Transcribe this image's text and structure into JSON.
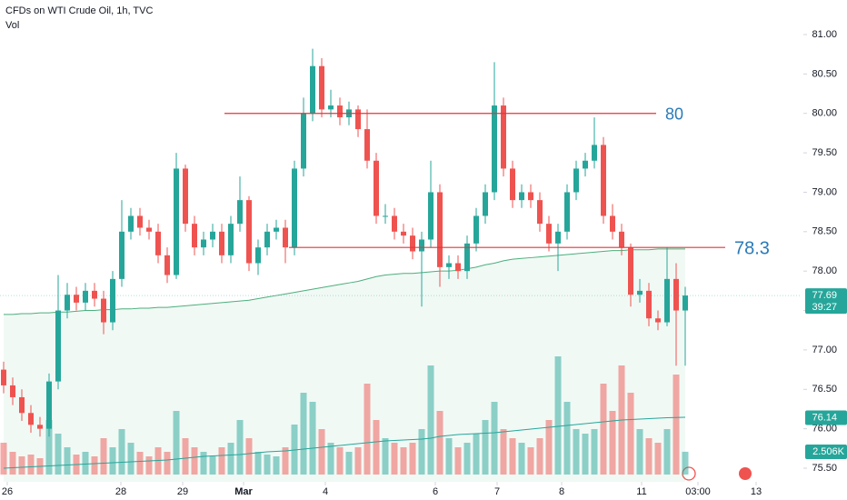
{
  "chart_data": {
    "type": "candlestick",
    "title": "CFDs on WTI Crude Oil, 1h, TVC",
    "volume_title": "Vol",
    "x": [
      0,
      1,
      2,
      3,
      4,
      5,
      6,
      7,
      8,
      9,
      10,
      11,
      12,
      13,
      14,
      15,
      16,
      17,
      18,
      19,
      20,
      21,
      22,
      23,
      24,
      25,
      26,
      27,
      28,
      29,
      30,
      31,
      32,
      33,
      34,
      35,
      36,
      37,
      38,
      39,
      40,
      41,
      42,
      43,
      44,
      45,
      46,
      47,
      48,
      49,
      50,
      51,
      52,
      53,
      54,
      55,
      56,
      57,
      58,
      59,
      60,
      61,
      62,
      63,
      64,
      65,
      66,
      67,
      68,
      69,
      70,
      71,
      72,
      73,
      74,
      75
    ],
    "xlim": [
      -0.4,
      87.6
    ],
    "xticks": [
      {
        "value": 0.4,
        "label": "26"
      },
      {
        "value": 12.9,
        "label": "28"
      },
      {
        "value": 19.7,
        "label": "29"
      },
      {
        "value": 26.4,
        "label": "Mar"
      },
      {
        "value": 35.4,
        "label": "4"
      },
      {
        "value": 47.5,
        "label": "6"
      },
      {
        "value": 54.3,
        "label": "7"
      },
      {
        "value": 61.4,
        "label": "8"
      },
      {
        "value": 70.2,
        "label": "11"
      },
      {
        "value": 76.4,
        "label": "03:00"
      },
      {
        "value": 82.8,
        "label": "13"
      }
    ],
    "ylim": [
      75.5,
      81
    ],
    "yticks": [
      {
        "value": 75.5,
        "label": "75.50"
      },
      {
        "value": 76,
        "label": "76.00"
      },
      {
        "value": 76.5,
        "label": "76.50"
      },
      {
        "value": 77,
        "label": "77.00"
      },
      {
        "value": 77.5,
        "label": "77.50"
      },
      {
        "value": 78,
        "label": "78.00"
      },
      {
        "value": 78.5,
        "label": "78.50"
      },
      {
        "value": 79,
        "label": "79.00"
      },
      {
        "value": 79.5,
        "label": "79.50"
      },
      {
        "value": 80,
        "label": "80.00"
      },
      {
        "value": 80.5,
        "label": "80.50"
      },
      {
        "value": 81,
        "label": "81.00"
      }
    ],
    "open": [
      76.75,
      76.55,
      76.4,
      76.2,
      76.05,
      76.0,
      76.6,
      77.5,
      77.7,
      77.6,
      77.75,
      77.65,
      77.35,
      77.9,
      78.5,
      78.7,
      78.55,
      78.5,
      78.2,
      77.95,
      79.3,
      78.6,
      78.3,
      78.4,
      78.5,
      78.2,
      78.6,
      78.9,
      78.1,
      78.3,
      78.5,
      78.55,
      78.3,
      79.3,
      80.0,
      80.6,
      80.05,
      80.1,
      79.95,
      80.05,
      79.8,
      79.4,
      78.7,
      78.7,
      78.5,
      78.45,
      78.25,
      78.4,
      79.0,
      78.05,
      78.1,
      78.0,
      78.35,
      78.7,
      79.0,
      80.1,
      79.3,
      78.9,
      79.0,
      78.9,
      78.6,
      78.35,
      78.5,
      79.0,
      79.3,
      79.4,
      79.6,
      78.7,
      78.5,
      78.3,
      77.7,
      77.75,
      77.4,
      77.35,
      77.9,
      77.5
    ],
    "high": [
      76.85,
      76.65,
      76.5,
      76.3,
      76.15,
      76.7,
      77.95,
      77.85,
      77.8,
      77.85,
      77.85,
      77.75,
      78.0,
      78.9,
      78.8,
      78.8,
      78.65,
      78.6,
      78.3,
      79.5,
      79.35,
      78.7,
      78.5,
      78.6,
      78.6,
      78.7,
      79.2,
      78.95,
      78.4,
      78.6,
      78.65,
      78.65,
      79.4,
      80.2,
      80.82,
      80.7,
      80.3,
      80.2,
      80.15,
      80.1,
      80.05,
      79.5,
      78.85,
      78.8,
      78.6,
      78.55,
      78.5,
      79.4,
      79.1,
      78.2,
      78.2,
      78.45,
      78.8,
      79.1,
      80.65,
      80.2,
      79.4,
      79.1,
      79.1,
      79.0,
      78.7,
      78.6,
      79.1,
      79.4,
      79.5,
      79.95,
      79.7,
      78.85,
      78.6,
      78.35,
      77.9,
      77.85,
      77.5,
      78.3,
      78.1,
      77.8
    ],
    "low": [
      76.45,
      76.3,
      76.1,
      75.95,
      75.9,
      75.9,
      76.5,
      77.4,
      77.5,
      77.5,
      77.55,
      77.2,
      77.25,
      77.8,
      78.4,
      78.45,
      78.4,
      78.1,
      77.85,
      77.9,
      78.5,
      78.2,
      78.2,
      78.3,
      78.1,
      78.1,
      78.5,
      78.0,
      77.95,
      78.2,
      78.4,
      78.1,
      78.2,
      79.2,
      79.9,
      79.95,
      79.95,
      79.85,
      79.85,
      79.7,
      79.3,
      78.6,
      78.6,
      78.4,
      78.35,
      78.15,
      77.55,
      78.3,
      77.8,
      77.9,
      77.9,
      77.9,
      78.25,
      78.6,
      78.9,
      79.2,
      78.8,
      78.8,
      78.8,
      78.5,
      78.25,
      78.0,
      78.4,
      78.9,
      79.2,
      79.3,
      78.6,
      78.4,
      78.2,
      77.55,
      77.6,
      77.3,
      77.25,
      77.3,
      76.8,
      76.8
    ],
    "close": [
      76.55,
      76.4,
      76.2,
      76.05,
      76.0,
      76.6,
      77.5,
      77.7,
      77.6,
      77.75,
      77.65,
      77.35,
      77.9,
      78.5,
      78.7,
      78.55,
      78.5,
      78.2,
      77.95,
      79.3,
      78.6,
      78.3,
      78.4,
      78.5,
      78.2,
      78.6,
      78.9,
      78.1,
      78.3,
      78.5,
      78.55,
      78.3,
      79.3,
      80.0,
      80.6,
      80.05,
      80.1,
      79.95,
      80.05,
      79.8,
      79.4,
      78.7,
      78.7,
      78.5,
      78.45,
      78.25,
      78.4,
      79.0,
      78.05,
      78.1,
      78.0,
      78.35,
      78.7,
      79.0,
      80.1,
      79.3,
      78.9,
      79.0,
      78.9,
      78.6,
      78.35,
      78.5,
      79.0,
      79.3,
      79.4,
      79.6,
      78.7,
      78.5,
      78.3,
      77.7,
      77.75,
      77.4,
      77.35,
      77.9,
      77.5,
      77.69
    ],
    "up_color": "#26a69a",
    "down_color": "#ef5350",
    "ma": {
      "color": "#4caf7d",
      "values": [
        77.45,
        77.45,
        77.46,
        77.46,
        77.47,
        77.47,
        77.48,
        77.48,
        77.49,
        77.5,
        77.5,
        77.51,
        77.51,
        77.52,
        77.52,
        77.53,
        77.53,
        77.54,
        77.54,
        77.55,
        77.56,
        77.57,
        77.58,
        77.59,
        77.6,
        77.61,
        77.62,
        77.63,
        77.65,
        77.67,
        77.69,
        77.71,
        77.73,
        77.75,
        77.77,
        77.79,
        77.81,
        77.83,
        77.85,
        77.87,
        77.9,
        77.93,
        77.95,
        77.96,
        77.97,
        77.97,
        77.98,
        77.99,
        78.0,
        78.0,
        78.01,
        78.03,
        78.05,
        78.08,
        78.1,
        78.13,
        78.15,
        78.16,
        78.17,
        78.18,
        78.19,
        78.2,
        78.21,
        78.22,
        78.23,
        78.24,
        78.25,
        78.26,
        78.26,
        78.27,
        78.27,
        78.27,
        78.28,
        78.28,
        78.28,
        78.28
      ]
    },
    "volume": {
      "values": [
        3.5,
        2.5,
        2,
        2.2,
        1.8,
        6,
        4.5,
        3,
        2.2,
        2.5,
        2,
        4,
        3,
        5,
        3.5,
        2.5,
        2,
        3,
        2.5,
        7,
        4,
        3,
        2.5,
        2,
        3,
        3.5,
        6,
        4,
        2.5,
        2.2,
        2,
        3,
        5.5,
        9,
        8,
        5,
        3.5,
        3,
        2.5,
        3,
        10,
        6,
        4,
        3.5,
        3,
        3.5,
        5,
        12,
        7,
        4,
        3,
        3.5,
        4.5,
        6,
        8,
        5,
        4,
        3.5,
        3,
        4,
        6,
        13,
        8,
        5,
        4.5,
        5,
        10,
        7,
        12,
        9,
        5,
        4,
        3.5,
        5,
        11,
        2.506
      ],
      "lim": [
        0,
        16
      ],
      "ma": [
        0.7,
        0.75,
        0.8,
        0.85,
        0.9,
        0.95,
        1.0,
        1.05,
        1.1,
        1.15,
        1.2,
        1.25,
        1.3,
        1.35,
        1.4,
        1.45,
        1.5,
        1.55,
        1.6,
        1.7,
        1.8,
        1.9,
        2.0,
        2.05,
        2.1,
        2.15,
        2.2,
        2.3,
        2.4,
        2.5,
        2.55,
        2.6,
        2.7,
        2.8,
        2.9,
        3.0,
        3.1,
        3.2,
        3.3,
        3.4,
        3.5,
        3.6,
        3.7,
        3.75,
        3.8,
        3.85,
        3.9,
        4.0,
        4.2,
        4.3,
        4.4,
        4.45,
        4.5,
        4.55,
        4.6,
        4.7,
        4.8,
        4.9,
        5.0,
        5.1,
        5.2,
        5.3,
        5.4,
        5.5,
        5.6,
        5.7,
        5.8,
        5.9,
        6.0,
        6.05,
        6.1,
        6.15,
        6.2,
        6.25,
        6.28,
        6.3
      ],
      "ma_color": "#26a69a",
      "tag": {
        "value": 2.506,
        "label": "2.506K"
      }
    },
    "hlines": [
      {
        "value": 80,
        "x": [
          24.3,
          71.8
        ],
        "color": "#e0363d",
        "label_color": "#2a7ab8"
      },
      {
        "value": 78.3,
        "x": [
          31.4,
          79.4
        ],
        "color": "#e0363d",
        "label_color": "#2a7ab8"
      }
    ],
    "last_price": 77.69,
    "countdown": "39:27",
    "ma_tag": 76.14
  }
}
